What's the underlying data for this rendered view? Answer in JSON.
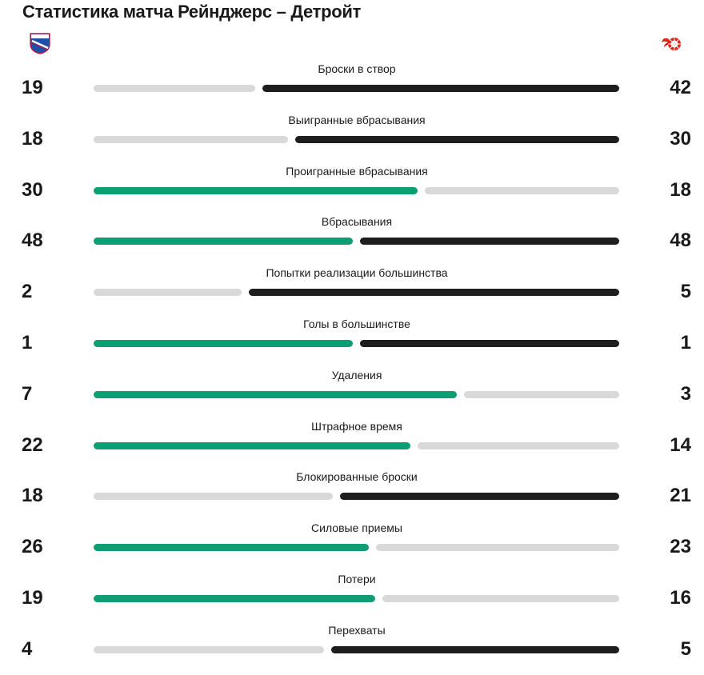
{
  "page": {
    "title": "Статистика матча Рейнджерс – Детройт"
  },
  "teams": {
    "home_logo_icon": "new-york-rangers-logo",
    "away_logo_icon": "detroit-red-wings-logo"
  },
  "colors": {
    "leader": "#0f9e74",
    "dark": "#1e1e1e",
    "neutral": "#d9d9d9"
  },
  "stats": [
    {
      "label": "Броски в створ",
      "home": "19",
      "away": "42",
      "home_share": 0.311,
      "leader": "away"
    },
    {
      "label": "Выигранные вбрасывания",
      "home": "18",
      "away": "30",
      "home_share": 0.375,
      "leader": "away"
    },
    {
      "label": "Проигранные вбрасывания",
      "home": "30",
      "away": "18",
      "home_share": 0.625,
      "leader": "home"
    },
    {
      "label": "Вбрасывания",
      "home": "48",
      "away": "48",
      "home_share": 0.5,
      "leader": "both"
    },
    {
      "label": "Попытки реализации большинства",
      "home": "2",
      "away": "5",
      "home_share": 0.286,
      "leader": "away"
    },
    {
      "label": "Голы в большинстве",
      "home": "1",
      "away": "1",
      "home_share": 0.5,
      "leader": "both"
    },
    {
      "label": "Удаления",
      "home": "7",
      "away": "3",
      "home_share": 0.7,
      "leader": "home"
    },
    {
      "label": "Штрафное время",
      "home": "22",
      "away": "14",
      "home_share": 0.611,
      "leader": "home"
    },
    {
      "label": "Блокированные броски",
      "home": "18",
      "away": "21",
      "home_share": 0.462,
      "leader": "away"
    },
    {
      "label": "Силовые приемы",
      "home": "26",
      "away": "23",
      "home_share": 0.531,
      "leader": "home"
    },
    {
      "label": "Потери",
      "home": "19",
      "away": "16",
      "home_share": 0.543,
      "leader": "home"
    },
    {
      "label": "Перехваты",
      "home": "4",
      "away": "5",
      "home_share": 0.444,
      "leader": "away"
    }
  ]
}
